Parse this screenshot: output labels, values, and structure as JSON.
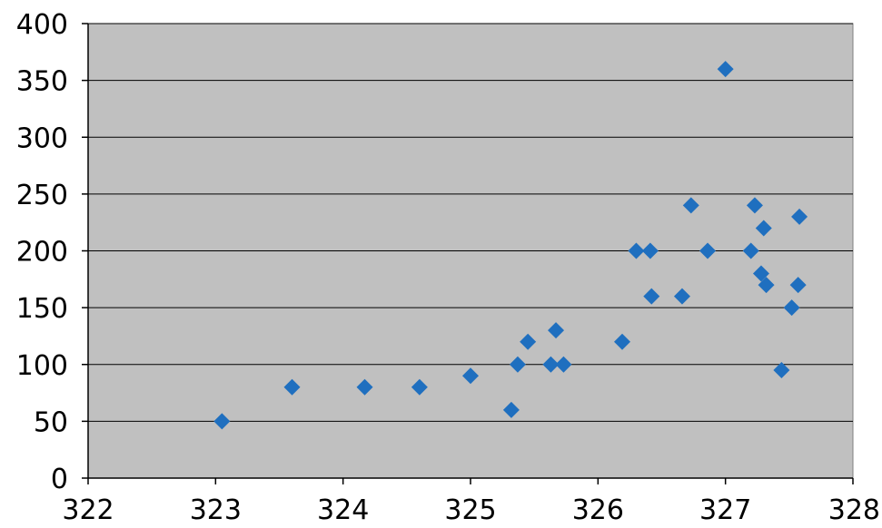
{
  "chart_data": {
    "type": "scatter",
    "title": "",
    "xlabel": "",
    "ylabel": "",
    "xlim": [
      322,
      328
    ],
    "ylim": [
      0,
      400
    ],
    "xticks": [
      "322",
      "323",
      "324",
      "325",
      "326",
      "327",
      "328"
    ],
    "yticks": [
      "0",
      "50",
      "100",
      "150",
      "200",
      "250",
      "300",
      "350",
      "400"
    ],
    "grid": "horizontal",
    "legend": "none",
    "colors": {
      "plot_background": "#c0c0c0",
      "marker": "#1f6fbf",
      "gridline": "#000000"
    },
    "marker_shape": "diamond",
    "series": [
      {
        "points": [
          {
            "x": 323.05,
            "y": 50
          },
          {
            "x": 323.6,
            "y": 80
          },
          {
            "x": 324.17,
            "y": 80
          },
          {
            "x": 324.6,
            "y": 80
          },
          {
            "x": 325.0,
            "y": 90
          },
          {
            "x": 325.32,
            "y": 60
          },
          {
            "x": 325.37,
            "y": 100
          },
          {
            "x": 325.45,
            "y": 120
          },
          {
            "x": 325.63,
            "y": 100
          },
          {
            "x": 325.67,
            "y": 130
          },
          {
            "x": 325.73,
            "y": 100
          },
          {
            "x": 326.19,
            "y": 120
          },
          {
            "x": 326.3,
            "y": 200
          },
          {
            "x": 326.41,
            "y": 200
          },
          {
            "x": 326.42,
            "y": 160
          },
          {
            "x": 326.66,
            "y": 160
          },
          {
            "x": 326.73,
            "y": 240
          },
          {
            "x": 326.86,
            "y": 200
          },
          {
            "x": 327.0,
            "y": 360
          },
          {
            "x": 327.2,
            "y": 200
          },
          {
            "x": 327.23,
            "y": 240
          },
          {
            "x": 327.28,
            "y": 180
          },
          {
            "x": 327.3,
            "y": 220
          },
          {
            "x": 327.32,
            "y": 170
          },
          {
            "x": 327.44,
            "y": 95
          },
          {
            "x": 327.52,
            "y": 150
          },
          {
            "x": 327.57,
            "y": 170
          },
          {
            "x": 327.58,
            "y": 230
          }
        ]
      }
    ]
  }
}
